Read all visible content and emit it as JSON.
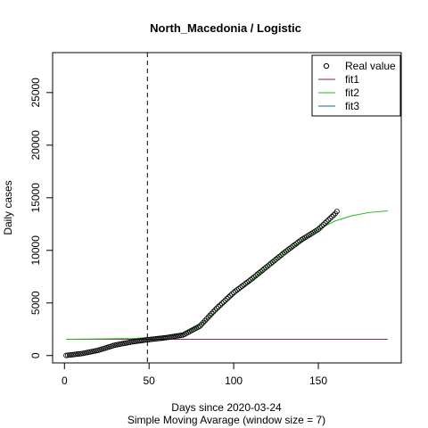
{
  "chart_data": {
    "type": "line",
    "title": "North_Macedonia / Logistic",
    "xlabel": "Days since 2020-03-24",
    "subtitle": "Simple Moving Avarage (window size = 7)",
    "ylabel": "Daily cases",
    "xlim": [
      -7,
      199
    ],
    "ylim": [
      -700,
      28800
    ],
    "x_ticks": [
      0,
      50,
      100,
      150
    ],
    "y_ticks": [
      0,
      5000,
      10000,
      15000,
      20000,
      25000
    ],
    "vline_x": 49,
    "legend_position": "top-right",
    "legend": [
      "Real value",
      "fit1",
      "fit2",
      "fit3"
    ],
    "series": [
      {
        "name": "Real value",
        "style": "points",
        "color": "#000000",
        "x_start": 1,
        "x_end": 161,
        "x_step": 1,
        "anchors": [
          [
            1,
            10
          ],
          [
            10,
            180
          ],
          [
            20,
            500
          ],
          [
            30,
            1000
          ],
          [
            40,
            1300
          ],
          [
            49,
            1500
          ],
          [
            60,
            1700
          ],
          [
            70,
            1950
          ],
          [
            80,
            2800
          ],
          [
            90,
            4500
          ],
          [
            100,
            6000
          ],
          [
            110,
            7200
          ],
          [
            120,
            8500
          ],
          [
            130,
            9800
          ],
          [
            140,
            11000
          ],
          [
            150,
            12000
          ],
          [
            160,
            13500
          ],
          [
            161,
            13700
          ]
        ]
      },
      {
        "name": "fit1",
        "style": "line",
        "color": "#8b2252",
        "points": [
          [
            1,
            1550
          ],
          [
            191,
            1550
          ]
        ]
      },
      {
        "name": "fit2",
        "style": "line",
        "color": "#22bb22",
        "points": [
          [
            1,
            1550
          ],
          [
            20,
            1580
          ],
          [
            40,
            1620
          ],
          [
            60,
            1800
          ],
          [
            70,
            2100
          ],
          [
            80,
            2900
          ],
          [
            90,
            4200
          ],
          [
            100,
            5700
          ],
          [
            110,
            7100
          ],
          [
            120,
            8500
          ],
          [
            130,
            9800
          ],
          [
            140,
            10900
          ],
          [
            150,
            12000
          ],
          [
            160,
            12800
          ],
          [
            170,
            13300
          ],
          [
            180,
            13600
          ],
          [
            191,
            13750
          ]
        ]
      },
      {
        "name": "fit3",
        "style": "line",
        "color": "#1f5fbf",
        "points": []
      }
    ]
  }
}
